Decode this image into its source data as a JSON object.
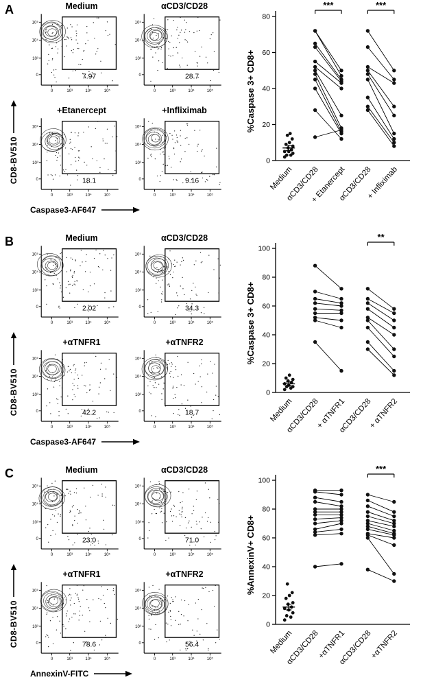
{
  "figure": {
    "flow_axis_ticks": {
      "y": [
        "10⁵",
        "10⁴",
        "10³",
        "0"
      ],
      "x": [
        "0",
        "10³",
        "10⁴",
        "10⁵"
      ]
    },
    "panels": [
      {
        "label": "A",
        "flow_y_label": "CD8-BV510",
        "flow_x_label": "Caspase3-AF647",
        "plots": [
          {
            "title": "Medium",
            "gate_value": "7.97"
          },
          {
            "title": "αCD3/CD28",
            "gate_value": "28.7"
          },
          {
            "title": "+Etanercept",
            "gate_value": "18.1"
          },
          {
            "title": "+Infliximab",
            "gate_value": "9.16"
          }
        ]
      },
      {
        "label": "B",
        "flow_y_label": "CD8-BV510",
        "flow_x_label": "Caspase3-AF647",
        "plots": [
          {
            "title": "Medium",
            "gate_value": "2.02"
          },
          {
            "title": "αCD3/CD28",
            "gate_value": "34.3"
          },
          {
            "title": "+αTNFR1",
            "gate_value": "42.2"
          },
          {
            "title": "+αTNFR2",
            "gate_value": "18.7"
          }
        ]
      },
      {
        "label": "C",
        "flow_y_label": "CD8-BV510",
        "flow_x_label": "AnnexinV-FITC",
        "plots": [
          {
            "title": "Medium",
            "gate_value": "23.0"
          },
          {
            "title": "αCD3/CD28",
            "gate_value": "71.0"
          },
          {
            "title": "+αTNFR1",
            "gate_value": "78.6"
          },
          {
            "title": "+αTNFR2",
            "gate_value": "56.4"
          }
        ]
      }
    ]
  },
  "chart_data": [
    {
      "type": "scatter",
      "panel": "A",
      "ylabel": "%Caspase 3+ CD8+",
      "ylim": [
        0,
        80
      ],
      "yticks": [
        0,
        20,
        40,
        60,
        80
      ],
      "categories": [
        "Medium",
        "αCD3/CD28",
        "+ Etanercept",
        "αCD3/CD28",
        "+ Infliximab"
      ],
      "unpaired": {
        "category": 0,
        "values": [
          2,
          3,
          3,
          4,
          5,
          5,
          6,
          7,
          8,
          9,
          10,
          12,
          14,
          15
        ],
        "mean": 7,
        "sem": 1.5
      },
      "paired": [
        {
          "from": 1,
          "to": 2,
          "pairs": [
            [
              72,
              50
            ],
            [
              72,
              47
            ],
            [
              65,
              45
            ],
            [
              63,
              44
            ],
            [
              55,
              43
            ],
            [
              52,
              40
            ],
            [
              50,
              25
            ],
            [
              48,
              18
            ],
            [
              45,
              16
            ],
            [
              40,
              15
            ],
            [
              28,
              12
            ],
            [
              13,
              17
            ]
          ]
        },
        {
          "from": 3,
          "to": 4,
          "pairs": [
            [
              72,
              50
            ],
            [
              63,
              45
            ],
            [
              52,
              43
            ],
            [
              50,
              30
            ],
            [
              48,
              25
            ],
            [
              45,
              15
            ],
            [
              35,
              12
            ],
            [
              30,
              10
            ],
            [
              28,
              8
            ]
          ]
        }
      ],
      "significance": [
        {
          "from": 1,
          "to": 2,
          "label": "***"
        },
        {
          "from": 3,
          "to": 4,
          "label": "***"
        }
      ]
    },
    {
      "type": "scatter",
      "panel": "B",
      "ylabel": "%Caspase 3+ CD8+",
      "ylim": [
        0,
        100
      ],
      "yticks": [
        0,
        20,
        40,
        60,
        80,
        100
      ],
      "categories": [
        "Medium",
        "αCD3/CD28",
        "+ αTNFR1",
        "αCD3/CD28",
        "+ αTNFR2"
      ],
      "unpaired": {
        "category": 0,
        "values": [
          2,
          3,
          4,
          4,
          5,
          6,
          7,
          8,
          9,
          10,
          12
        ],
        "mean": 6,
        "sem": 1.2
      },
      "paired": [
        {
          "from": 1,
          "to": 2,
          "pairs": [
            [
              88,
              72
            ],
            [
              70,
              65
            ],
            [
              65,
              62
            ],
            [
              62,
              60
            ],
            [
              58,
              57
            ],
            [
              55,
              55
            ],
            [
              52,
              50
            ],
            [
              50,
              45
            ],
            [
              35,
              15
            ]
          ]
        },
        {
          "from": 3,
          "to": 4,
          "pairs": [
            [
              72,
              58
            ],
            [
              65,
              55
            ],
            [
              62,
              50
            ],
            [
              58,
              45
            ],
            [
              52,
              40
            ],
            [
              50,
              30
            ],
            [
              45,
              25
            ],
            [
              35,
              15
            ],
            [
              30,
              12
            ]
          ]
        }
      ],
      "significance": [
        {
          "from": 3,
          "to": 4,
          "label": "**"
        }
      ]
    },
    {
      "type": "scatter",
      "panel": "C",
      "ylabel": "%AnnexinV+ CD8+",
      "ylim": [
        0,
        100
      ],
      "yticks": [
        0,
        20,
        40,
        60,
        80,
        100
      ],
      "categories": [
        "Medium",
        "αCD3/CD28",
        "+αTNFR1",
        "αCD3/CD28",
        "+αTNFR2"
      ],
      "unpaired": {
        "category": 0,
        "values": [
          3,
          5,
          6,
          8,
          10,
          11,
          12,
          14,
          15,
          18,
          20,
          22,
          28
        ],
        "mean": 12,
        "sem": 2
      },
      "paired": [
        {
          "from": 1,
          "to": 2,
          "pairs": [
            [
              93,
              93
            ],
            [
              92,
              90
            ],
            [
              88,
              85
            ],
            [
              85,
              82
            ],
            [
              80,
              80
            ],
            [
              78,
              78
            ],
            [
              76,
              76
            ],
            [
              73,
              74
            ],
            [
              70,
              72
            ],
            [
              66,
              70
            ],
            [
              64,
              66
            ],
            [
              62,
              63
            ],
            [
              40,
              42
            ]
          ]
        },
        {
          "from": 3,
          "to": 4,
          "pairs": [
            [
              90,
              85
            ],
            [
              86,
              78
            ],
            [
              82,
              75
            ],
            [
              78,
              72
            ],
            [
              75,
              70
            ],
            [
              72,
              68
            ],
            [
              70,
              65
            ],
            [
              68,
              63
            ],
            [
              66,
              62
            ],
            [
              63,
              60
            ],
            [
              62,
              55
            ],
            [
              60,
              35
            ],
            [
              38,
              30
            ]
          ]
        }
      ],
      "significance": [
        {
          "from": 3,
          "to": 4,
          "label": "***"
        }
      ]
    }
  ]
}
